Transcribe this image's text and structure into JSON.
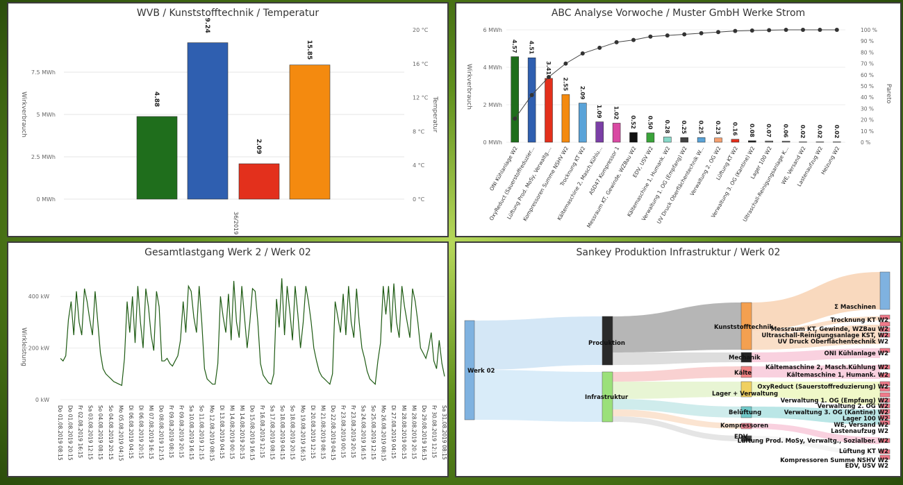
{
  "chart_data": [
    {
      "id": "wvb",
      "type": "bar",
      "title": "WVB / Kunststofftechnik / Temperatur",
      "categories": [
        "36/2019"
      ],
      "series": [
        {
          "name": "",
          "value": 4.88,
          "label": "4.88",
          "color": "#1f6e1c"
        },
        {
          "name": "",
          "value": 9.24,
          "label": "9.24",
          "color": "#2f5fb0"
        },
        {
          "name": "",
          "value": 2.09,
          "label": "2.09",
          "color": "#e3301c"
        },
        {
          "name": "",
          "value": 15.85,
          "label": "15.85",
          "color": "#f48a0f"
        }
      ],
      "ylabel": "Wirkverbrauch",
      "y2label": "Temperatur",
      "ylim": [
        0,
        10
      ],
      "y2lim": [
        0,
        20
      ],
      "yticks": [
        "0 MWh",
        "2.5 MWh",
        "5 MWh",
        "7.5 MWh"
      ],
      "y2ticks": [
        "0 °C",
        "4 °C",
        "8 °C",
        "12 °C",
        "16 °C",
        "20 °C"
      ]
    },
    {
      "id": "abc",
      "type": "bar",
      "title": "ABC Analyse Vorwoche / Muster GmbH Werke Strom",
      "ylabel": "Wirkverbrauch",
      "y2label": "Pareto",
      "ylim": [
        0,
        6
      ],
      "y2lim": [
        0,
        100
      ],
      "yticks": [
        "0 MWh",
        "2 MWh",
        "4 MWh",
        "6 MWh"
      ],
      "y2ticks": [
        "0 %",
        "10 %",
        "20 %",
        "30 %",
        "40 %",
        "50 %",
        "60 %",
        "70 %",
        "80 %",
        "90 %",
        "100 %"
      ],
      "categories": [
        "ONI Kühlanlage W2",
        "OxyReduct (Sauerstoffreduzier...",
        "Lüftung Prod. MoSy, Verwaltg....",
        "Kompressoren Summe NSHV W2",
        "Trocknung KT W2",
        "Kältemaschine 2, Masch.Kühlu...",
        "ASD47 Kompressor 1",
        "Messraum KT, Gewinde, WZBau W2",
        "EDV, USV W2",
        "Kältemaschine 1, Humank. W2",
        "Verwaltung 1. OG (Empfang) W2",
        "UV Druck Oberflächentechnik W...",
        "Verwaltung 2. OG W2",
        "Lüftung KT W2",
        "Verwaltung 3. OG (Kantine) W2",
        "Lager 100 W2",
        "Ultraschall-Reinigungsanlage K...",
        "WE, Versand W2",
        "Lastenaufzug W2",
        "Heizung W2"
      ],
      "values": [
        4.57,
        4.51,
        3.41,
        2.55,
        2.09,
        1.09,
        1.02,
        0.52,
        0.5,
        0.28,
        0.25,
        0.25,
        0.23,
        0.16,
        0.08,
        0.07,
        0.06,
        0.02,
        0.02,
        0.02
      ],
      "labels": [
        "4.57",
        "4.51",
        "3.41",
        "2.55",
        "2.09",
        "1.09",
        "1.02",
        "0.52",
        "0.50",
        "0.28",
        "0.25",
        "0.25",
        "0.23",
        "0.16",
        "0.08",
        "0.07",
        "0.06",
        "0.02",
        "0.02",
        "0.02"
      ],
      "colors": [
        "#1f6e1c",
        "#2f5fb0",
        "#e3301c",
        "#f48a0f",
        "#5aa3d8",
        "#7b3fa6",
        "#d94aa3",
        "#111111",
        "#3aa33a",
        "#88d8c8",
        "#444444",
        "#5aa3d8",
        "#f4a070",
        "#e3301c",
        "#222222",
        "#777777",
        "#888888",
        "#aaaaaa",
        "#bbbbbb",
        "#cccccc"
      ],
      "pareto": [
        21,
        42,
        58,
        70,
        79,
        84,
        89,
        91,
        94,
        95,
        96,
        97,
        98,
        99,
        99.4,
        99.7,
        100,
        100,
        100,
        100
      ]
    },
    {
      "id": "lastgang",
      "type": "line",
      "title": "Gesamtlastgang Werk 2 / Werk 02",
      "ylabel": "Wirkleistung",
      "ylim": [
        0,
        500
      ],
      "yticks": [
        "0 kW",
        "200 kW",
        "400 kW"
      ],
      "series": [
        {
          "name": "",
          "color": "#1d5a12"
        }
      ],
      "xticks": [
        "Do 01.08.2019 08:15",
        "Do 01.08.2019 20:15",
        "Fr 02.08.2019 16:15",
        "Sa 03.08.2019 12:15",
        "So 04.08.2019 08:15",
        "So 04.08.2019 20:15",
        "Mo 05.08.2019 04:15",
        "Di 06.08.2019 04:15",
        "Di 06.08.2019 20:15",
        "Mi 07.08.2019 16:15",
        "Do 08.08.2019 12:15",
        "Fr 09.08.2019 08:15",
        "Fr 09.08.2019 20:15",
        "Sa 10.08.2019 16:15",
        "So 11.08.2019 12:15",
        "Mo 12.08.2019 08:15",
        "Di 13.08.2019 04:15",
        "Mi 14.08.2019 00:15",
        "Mi 14.08.2019 20:15",
        "Do 15.08.2019 16:15",
        "Fr 16.08.2019 12:15",
        "Sa 17.08.2019 08:15",
        "So 18.08.2019 04:15",
        "So 18.08.2019 20:15",
        "Mo 19.08.2019 16:15",
        "Di 20.08.2019 12:15",
        "Mi 21.08.2019 08:15",
        "Do 22.08.2019 04:15",
        "Fr 23.08.2019 00:15",
        "Fr 23.08.2019 20:15",
        "Sa 24.08.2019 16:15",
        "So 25.08.2019 12:15",
        "Mo 26.08.2019 08:15",
        "Di 27.08.2019 04:15",
        "Mi 28.08.2019 00:15",
        "Mi 28.08.2019 20:15",
        "Do 29.08.2019 16:15",
        "Fr 30.08.2019 12:15",
        "Sa 31.08.2019 08:15"
      ],
      "values": [
        160,
        150,
        170,
        310,
        380,
        250,
        420,
        300,
        250,
        430,
        380,
        310,
        250,
        420,
        300,
        180,
        120,
        100,
        90,
        80,
        70,
        65,
        60,
        55,
        160,
        380,
        260,
        400,
        220,
        440,
        300,
        200,
        430,
        360,
        250,
        190,
        420,
        360,
        150,
        150,
        160,
        140,
        130,
        150,
        170,
        230,
        380,
        260,
        440,
        420,
        320,
        260,
        440,
        300,
        120,
        80,
        70,
        60,
        60,
        140,
        400,
        320,
        260,
        410,
        230,
        460,
        300,
        240,
        440,
        320,
        200,
        300,
        430,
        420,
        300,
        140,
        95,
        80,
        65,
        60,
        100,
        390,
        280,
        470,
        250,
        440,
        340,
        230,
        440,
        330,
        200,
        300,
        440,
        380,
        300,
        200,
        150,
        110,
        90,
        80,
        70,
        60,
        100,
        380,
        320,
        260,
        410,
        250,
        440,
        300,
        240,
        430,
        300,
        200,
        160,
        110,
        80,
        70,
        60,
        150,
        220,
        440,
        330,
        440,
        260,
        450,
        300,
        240,
        440,
        360,
        300,
        240,
        430,
        380,
        300,
        200,
        180,
        160,
        200,
        260,
        150,
        120,
        230,
        140,
        90
      ]
    },
    {
      "id": "sankey",
      "type": "sankey",
      "title": "Sankey Produktion Infrastruktur / Werk 02",
      "nodes": [
        "Werk 02",
        "Produktion",
        "Infrastruktur",
        "Kunststofftechnik",
        "Mechanik",
        "Kälte",
        "Lager + Verwaltung",
        "Belüftung",
        "Kompressoren",
        "EDV",
        "Σ Maschinen",
        "Trocknung KT W2",
        "Messraum KT, Gewinde, WZBau W2",
        "Ultraschall-Reinigungsanlage KST, W2",
        "UV Druck Oberflächentechnik W2",
        "ONI Kühlanlage W2",
        "Kältemaschine 2, Masch.Kühlung W2",
        "Kältemaschine 1, Humank. W2",
        "OxyReduct (Sauerstoffreduzierung) W2",
        "Verwaltung 1. OG (Empfang) W2",
        "Verwaltung 2. OG W2",
        "Verwaltung 3. OG (Kantine) W2",
        "Lager 100 W2",
        "WE, Versand W2",
        "Lastenaufzug W2",
        "Lüftung Prod. MoSy, Verwaltg., Sozialber. W2",
        "Lüftung KT W2",
        "Kompressoren Summe NSHV W2",
        "EDV, USV W2"
      ]
    }
  ]
}
